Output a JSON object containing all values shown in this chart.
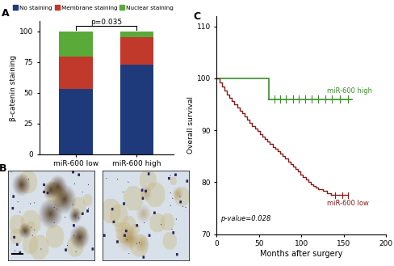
{
  "panel_A": {
    "categories": [
      "miR-600 low",
      "miR-600 high"
    ],
    "no_staining": [
      53,
      73
    ],
    "membrane_staining": [
      26,
      22
    ],
    "nuclear_staining": [
      21,
      5
    ],
    "colors": [
      "#1e3a7a",
      "#c0392b",
      "#5aaa3a"
    ],
    "ylabel": "β-catenin staining",
    "ylim": [
      0,
      108
    ],
    "yticks": [
      0,
      25,
      50,
      75,
      100
    ],
    "pvalue": "p=0.035",
    "legend_labels": [
      "No staining",
      "Membrane staining",
      "Nuclear staining"
    ]
  },
  "panel_C": {
    "ylabel": "Overall survival",
    "xlabel": "Months after surgery",
    "ylim": [
      70,
      112
    ],
    "xlim": [
      0,
      200
    ],
    "yticks": [
      70,
      80,
      90,
      100,
      110
    ],
    "xticks": [
      0,
      50,
      100,
      150,
      200
    ],
    "pvalue_text": "p-value=0.028",
    "high_color": "#3a8c2a",
    "low_color": "#8b1a1a",
    "label_high": "miR-600 high",
    "label_low": "miR-600 low"
  }
}
